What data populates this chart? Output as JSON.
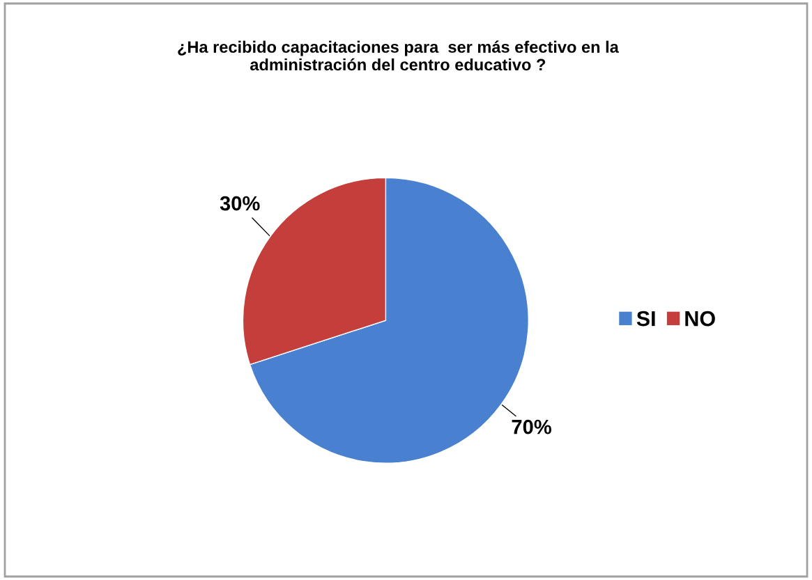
{
  "chart_data": {
    "type": "pie",
    "title": "¿Ha recibido capacitaciones para  ser más efectivo en la\nadministración del centro educativo ?",
    "categories": [
      "SI",
      "NO"
    ],
    "values": [
      70,
      30
    ],
    "colors": [
      "#4a80d0",
      "#c43e3c"
    ],
    "value_labels": [
      "70%",
      "30%"
    ],
    "legend": "right"
  }
}
